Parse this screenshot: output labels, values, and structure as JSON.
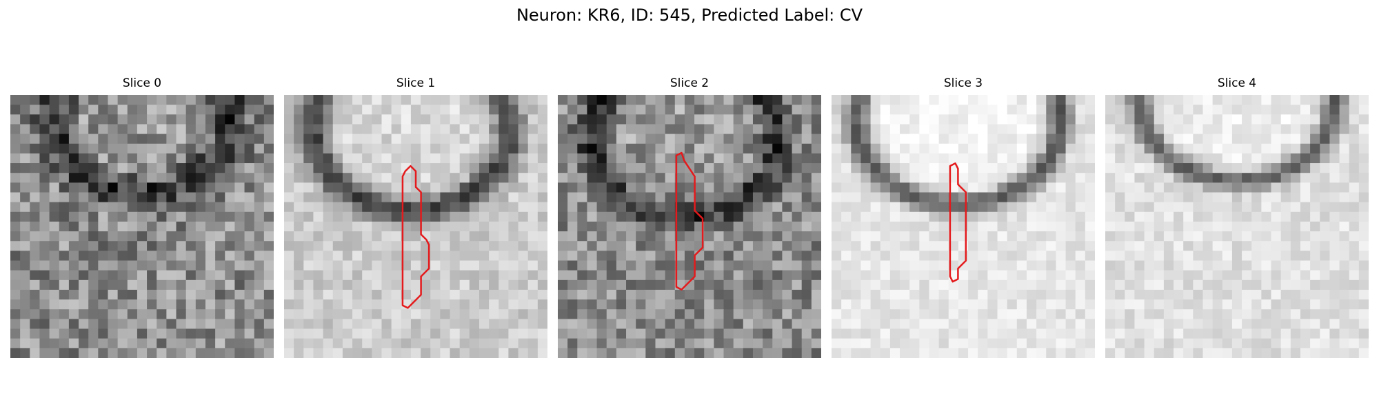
{
  "figure": {
    "title": "Neuron: KR6, ID: 545, Predicted Label: CV"
  },
  "panels": [
    {
      "label": "Slice 0"
    },
    {
      "label": "Slice 1"
    },
    {
      "label": "Slice 2"
    },
    {
      "label": "Slice 3"
    },
    {
      "label": "Slice 4"
    }
  ],
  "colors": {
    "contour": "#e41a1c"
  }
}
